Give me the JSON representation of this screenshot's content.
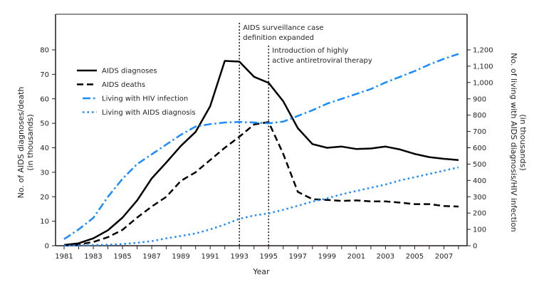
{
  "chart_data": {
    "type": "line",
    "title": "",
    "xlabel": "Year",
    "ylabel": "No. of AIDS diagnoses/death",
    "ylabel_sub": "(in thousands)",
    "y2label": "No. of living with AIDS diagnosis/HIV infection",
    "y2label_sub": "(in thousands)",
    "xlim": [
      1981,
      2008
    ],
    "ylim": [
      0,
      80
    ],
    "y2lim": [
      0,
      1200
    ],
    "x_ticks": [
      1981,
      1983,
      1985,
      1987,
      1989,
      1991,
      1993,
      1995,
      1997,
      1999,
      2001,
      2003,
      2005,
      2007
    ],
    "y_ticks": [
      0,
      10,
      20,
      30,
      40,
      50,
      60,
      70,
      80
    ],
    "y2_ticks": [
      "0",
      "100",
      "200",
      "300",
      "400",
      "500",
      "600",
      "700",
      "800",
      "900",
      "1,000",
      "1,100",
      "1,200"
    ],
    "grid": false,
    "legend_position": "top-left",
    "x": [
      1981,
      1982,
      1983,
      1984,
      1985,
      1986,
      1987,
      1988,
      1989,
      1990,
      1991,
      1992,
      1993,
      1994,
      1995,
      1996,
      1997,
      1998,
      1999,
      2000,
      2001,
      2002,
      2003,
      2004,
      2005,
      2006,
      2007,
      2008
    ],
    "series": [
      {
        "name": "AIDS diagnoses",
        "axis": "left",
        "style": "solid",
        "color": "#000000",
        "values": [
          0.3,
          1,
          3,
          6.3,
          11.5,
          18.5,
          27.5,
          34,
          40.8,
          46.5,
          57,
          75.5,
          75.2,
          69,
          66.5,
          59,
          48,
          41.5,
          40,
          40.5,
          39.5,
          39.7,
          40.5,
          39.3,
          37.5,
          36.2,
          35.5,
          35
        ]
      },
      {
        "name": "AIDS deaths",
        "axis": "left",
        "style": "dashed",
        "color": "#000000",
        "values": [
          0.1,
          0.5,
          1.5,
          3.5,
          6.5,
          11.5,
          16,
          20,
          26.5,
          30,
          35,
          40,
          44.5,
          49.5,
          50.5,
          37.5,
          22,
          19,
          18.7,
          18.3,
          18.5,
          18.1,
          18.1,
          17.6,
          17,
          17,
          16.2,
          16
        ]
      },
      {
        "name": "Living with HIV infection",
        "axis": "right",
        "style": "dashdot",
        "color": "#1a8cff",
        "values": [
          40,
          100,
          170,
          300,
          410,
          500,
          560,
          620,
          680,
          730,
          745,
          755,
          758,
          755,
          750,
          760,
          795,
          830,
          870,
          900,
          930,
          960,
          1000,
          1035,
          1070,
          1110,
          1145,
          1175
        ]
      },
      {
        "name": "Living with AIDS diagnosis",
        "axis": "right",
        "style": "dotted",
        "color": "#1a8cff",
        "values": [
          0,
          2,
          4,
          6,
          10,
          18,
          28,
          45,
          60,
          75,
          100,
          130,
          165,
          185,
          198,
          220,
          245,
          270,
          290,
          315,
          335,
          355,
          375,
          400,
          420,
          440,
          460,
          480
        ]
      }
    ],
    "annotations": [
      {
        "x": 1993,
        "lines": [
          "AIDS surveillance case",
          "definition expanded"
        ]
      },
      {
        "x": 1995,
        "lines": [
          "Introduction of highly",
          "active antiretroviral therapy"
        ]
      }
    ]
  }
}
